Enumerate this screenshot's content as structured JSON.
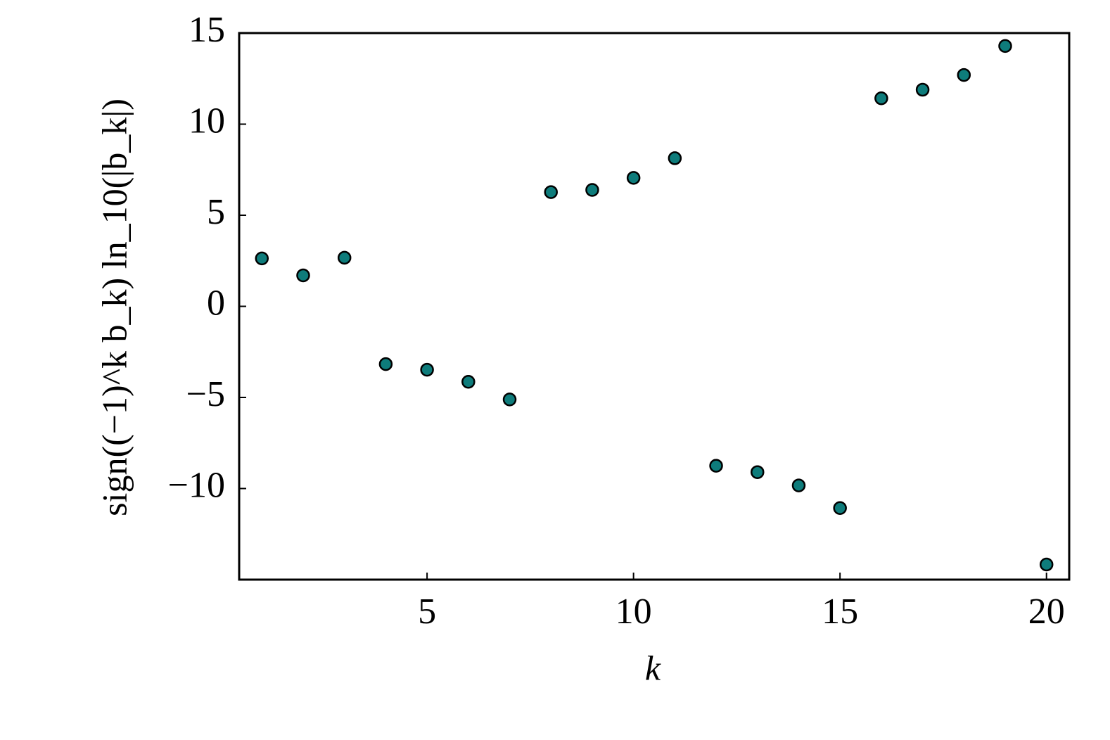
{
  "chart_data": {
    "type": "scatter",
    "xlabel": "k",
    "ylabel": "sign((−1)^k b_k) ln_10(|b_k|)",
    "x": [
      1,
      2,
      3,
      4,
      5,
      6,
      7,
      8,
      9,
      10,
      11,
      12,
      13,
      14,
      15,
      16,
      17,
      18,
      19,
      20
    ],
    "series": [
      {
        "name": null,
        "color": "#0e7c7b",
        "values": [
          2.63,
          1.7,
          2.67,
          -3.17,
          -3.48,
          -4.14,
          -5.11,
          6.27,
          6.39,
          7.05,
          8.13,
          -8.75,
          -9.1,
          -9.83,
          -11.07,
          11.42,
          11.89,
          12.7,
          14.29,
          -14.17
        ]
      }
    ],
    "xlim": [
      0.45,
      20.55
    ],
    "xticks": [
      5,
      10,
      15,
      20
    ],
    "ylim": [
      -15,
      15
    ],
    "yticks": [
      {
        "value": -10,
        "label": "−10"
      },
      {
        "value": -5,
        "label": "−5"
      },
      0,
      5,
      10,
      15
    ],
    "grid": false
  }
}
